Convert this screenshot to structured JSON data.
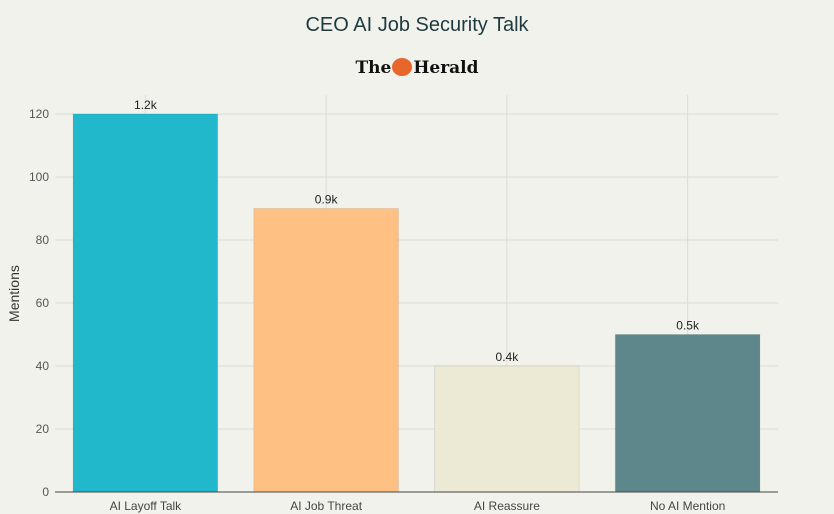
{
  "chart_data": {
    "type": "bar",
    "title": "CEO AI Job Security Talk",
    "logo_text": "The Herald",
    "categories": [
      "AI Layoff Talk",
      "AI Job Threat",
      "AI Reassure",
      "No AI Mention"
    ],
    "values": [
      120,
      90,
      40,
      50
    ],
    "data_labels": [
      "1.2k",
      "0.9k",
      "0.4k",
      "0.5k"
    ],
    "colors": [
      "#22b8cc",
      "#ffc083",
      "#ecead5",
      "#5e878c"
    ],
    "xlabel": "",
    "ylabel": "Mentions",
    "ylim": [
      0,
      126
    ],
    "yticks": [
      0,
      20,
      40,
      60,
      80,
      100,
      120
    ],
    "grid": true,
    "legend": "none"
  }
}
